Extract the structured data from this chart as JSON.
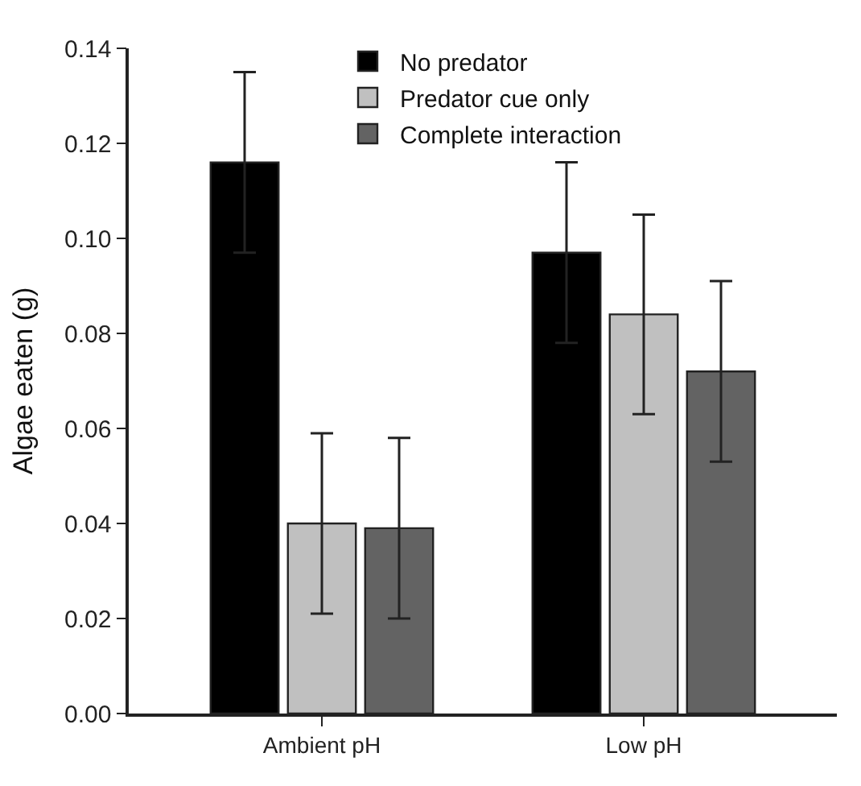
{
  "chart_data": {
    "type": "bar",
    "ylabel": "Algae eaten (g)",
    "categories": [
      "Ambient pH",
      "Low pH"
    ],
    "series": [
      {
        "name": "No predator",
        "color": "#000000",
        "values": [
          0.116,
          0.097
        ],
        "errors": [
          0.019,
          0.019
        ]
      },
      {
        "name": "Predator cue only",
        "color": "#c0c0c0",
        "values": [
          0.04,
          0.084
        ],
        "errors": [
          0.019,
          0.021
        ]
      },
      {
        "name": "Complete interaction",
        "color": "#636363",
        "values": [
          0.039,
          0.072
        ],
        "errors": [
          0.019,
          0.019
        ]
      }
    ],
    "ylim": [
      0,
      0.14
    ],
    "yticks": [
      {
        "value": 0,
        "label": "0.00"
      },
      {
        "value": 0.02,
        "label": "0.02"
      },
      {
        "value": 0.04,
        "label": "0.04"
      },
      {
        "value": 0.06,
        "label": "0.06"
      },
      {
        "value": 0.08,
        "label": "0.08"
      },
      {
        "value": 0.1,
        "label": "0.10"
      },
      {
        "value": 0.12,
        "label": "0.12"
      },
      {
        "value": 0.14,
        "label": "0.14"
      }
    ],
    "legend": "top"
  }
}
